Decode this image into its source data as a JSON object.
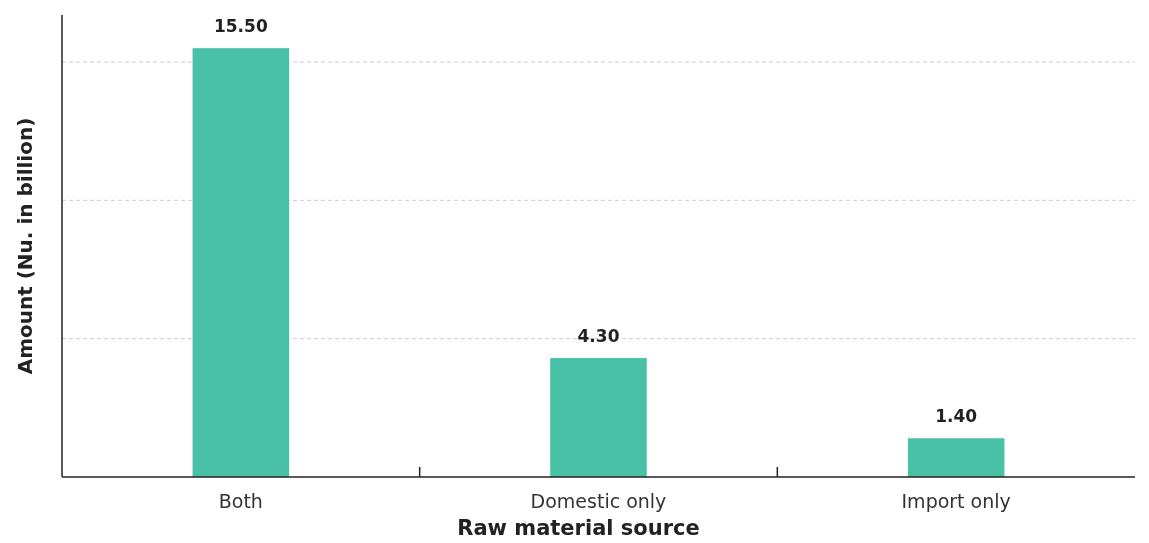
{
  "chart_data": {
    "type": "bar",
    "xlabel": "Raw material source",
    "ylabel": "Amount (Nu. in billion)",
    "categories": [
      "Both",
      "Domestic only",
      "Import only"
    ],
    "values": [
      15.5,
      4.3,
      1.4
    ],
    "color": "#48c1a6",
    "value_labels": [
      "15.50",
      "4.30",
      "1.40"
    ],
    "ylim": [
      0,
      16.7
    ],
    "yticks": [
      {
        "value": 5,
        "label": null
      },
      {
        "value": 10,
        "label": null
      },
      {
        "value": 15,
        "label": null
      }
    ],
    "tick_labels": "x",
    "grid": "y"
  }
}
